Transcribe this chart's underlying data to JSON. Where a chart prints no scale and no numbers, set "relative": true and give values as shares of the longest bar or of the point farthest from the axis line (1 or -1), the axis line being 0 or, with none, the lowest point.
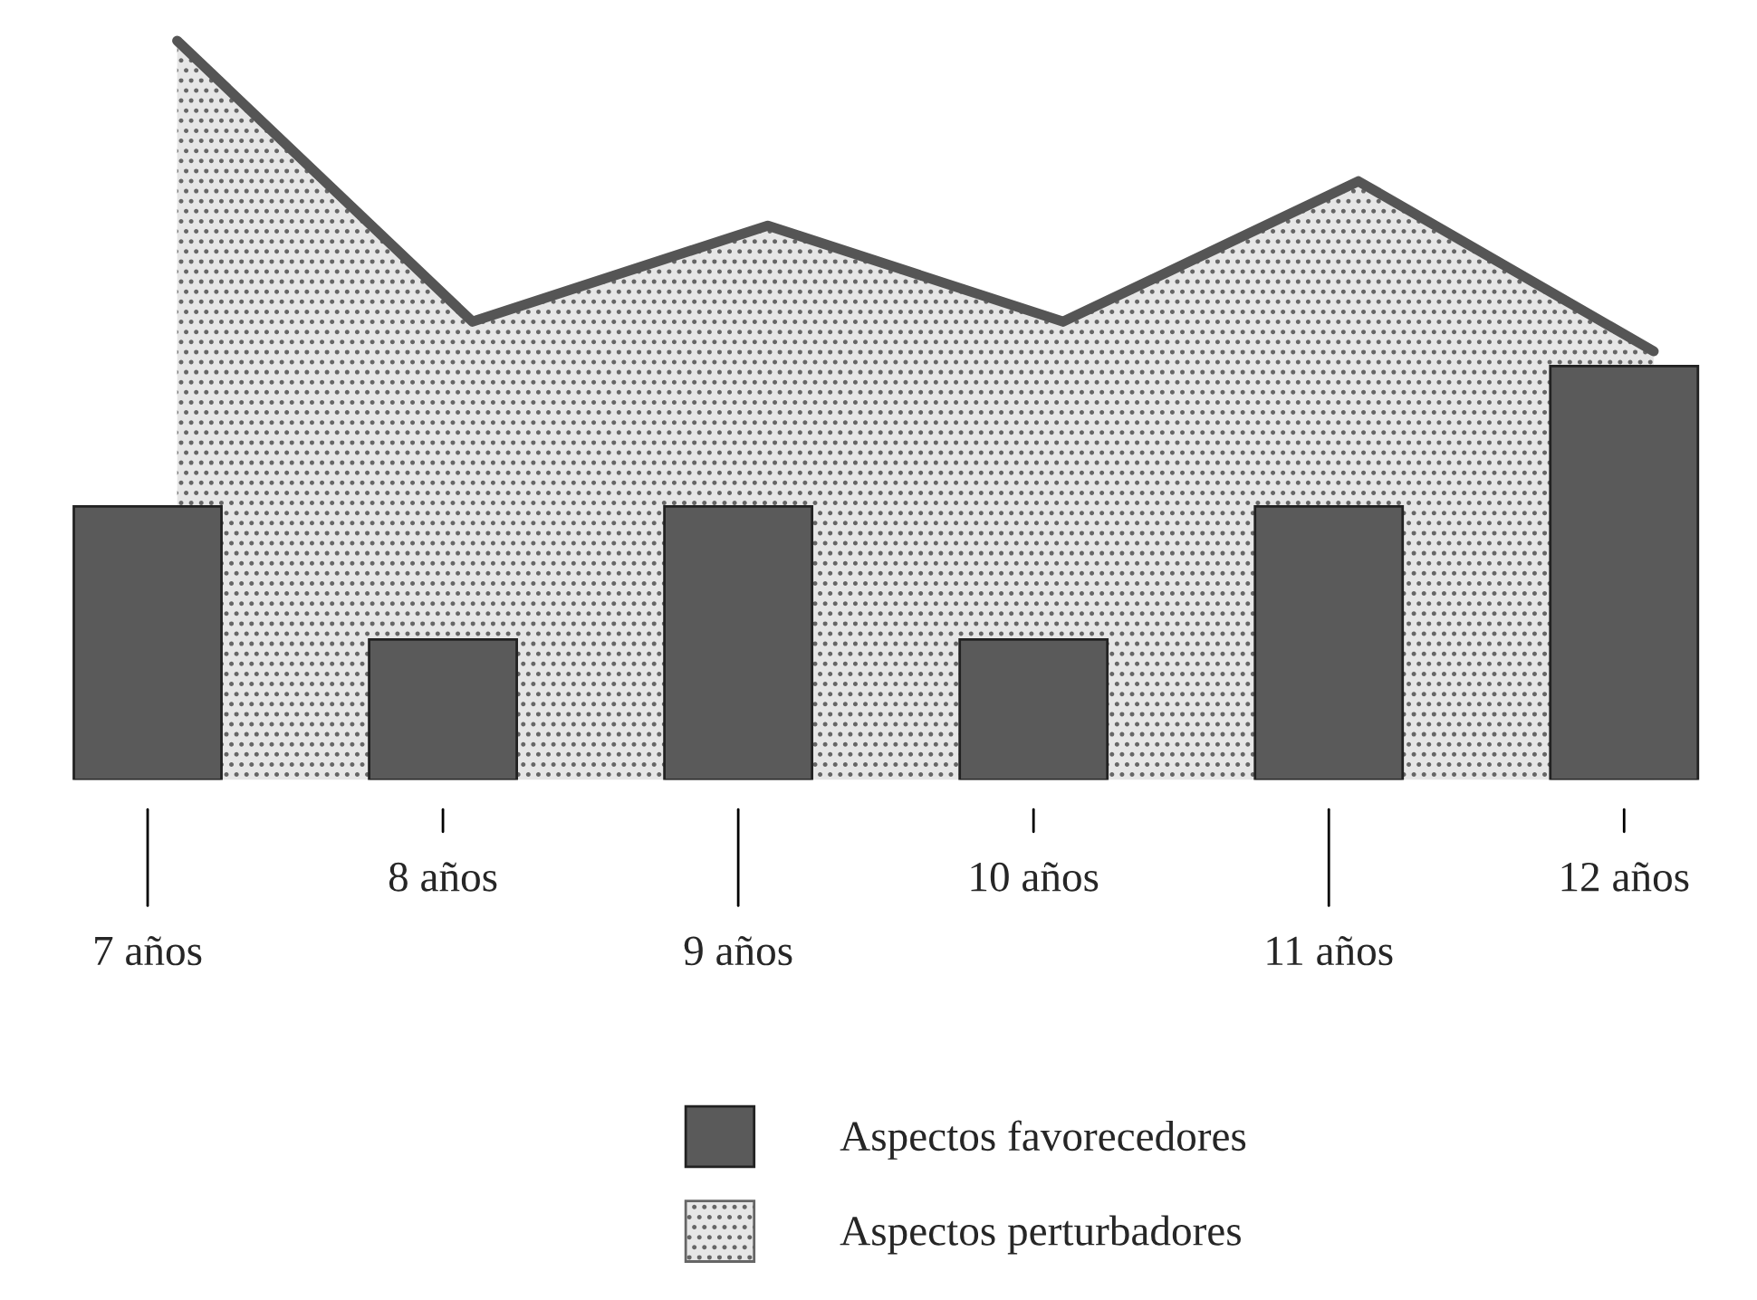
{
  "chart_data": {
    "type": "bar",
    "relative": true,
    "categories": [
      "7 años",
      "8 años",
      "9 años",
      "10 años",
      "11 años",
      "12 años"
    ],
    "series": [
      {
        "name": "Aspectos favorecedores",
        "color": "#5a5a5a",
        "values": [
          0.37,
          0.19,
          0.37,
          0.19,
          0.37,
          0.56
        ]
      },
      {
        "name": "Aspectos perturbadores",
        "type": "area",
        "color": "#e6e6e6",
        "values": [
          1,
          0.62,
          0.75,
          0.62,
          0.81,
          0.58
        ]
      }
    ],
    "legend": "bottom"
  }
}
